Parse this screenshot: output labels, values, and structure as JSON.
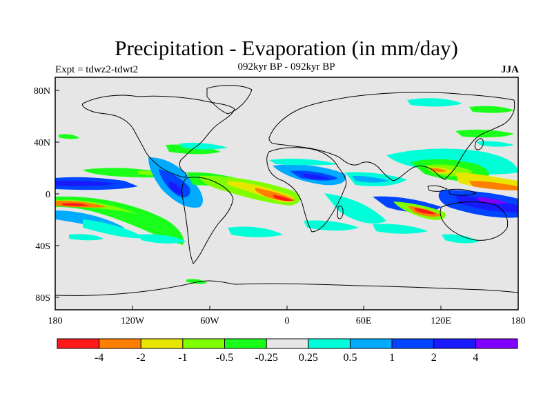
{
  "title": "Precipitation - Evaporation (in mm/day)",
  "subtitle": "092kyr BP - 092kyr BP",
  "left_label": "Expt = tdwz2-tdwt2",
  "right_label": "JJA",
  "colors": {
    "land_sea_background": "#e6e6e6",
    "coast": "#000000",
    "red": "#ff1a1a",
    "orange": "#ff8000",
    "yellow": "#e6e600",
    "yellowgreen": "#80ff00",
    "green": "#1aff1a",
    "neutral": "#e6e6e6",
    "cyan": "#00ffd9",
    "lightblue": "#00aaff",
    "blue": "#0044ff",
    "darkblue": "#1a1aff",
    "purple": "#8000ff"
  },
  "axes": {
    "lat_ticks": [
      "80N",
      "40N",
      "0",
      "40S",
      "80S"
    ],
    "lon_ticks": [
      "180",
      "120W",
      "60W",
      "0",
      "60E",
      "120E",
      "180"
    ]
  },
  "colorbar": {
    "labels": [
      "-4",
      "-2",
      "-1",
      "-0.5",
      "-0.25",
      "0.25",
      "0.5",
      "1",
      "2",
      "4"
    ],
    "colors": [
      "#ff1a1a",
      "#ff8000",
      "#e6e600",
      "#80ff00",
      "#1aff1a",
      "#e6e6e6",
      "#00ffd9",
      "#00aaff",
      "#0044ff",
      "#1a1aff",
      "#8000ff"
    ]
  }
}
